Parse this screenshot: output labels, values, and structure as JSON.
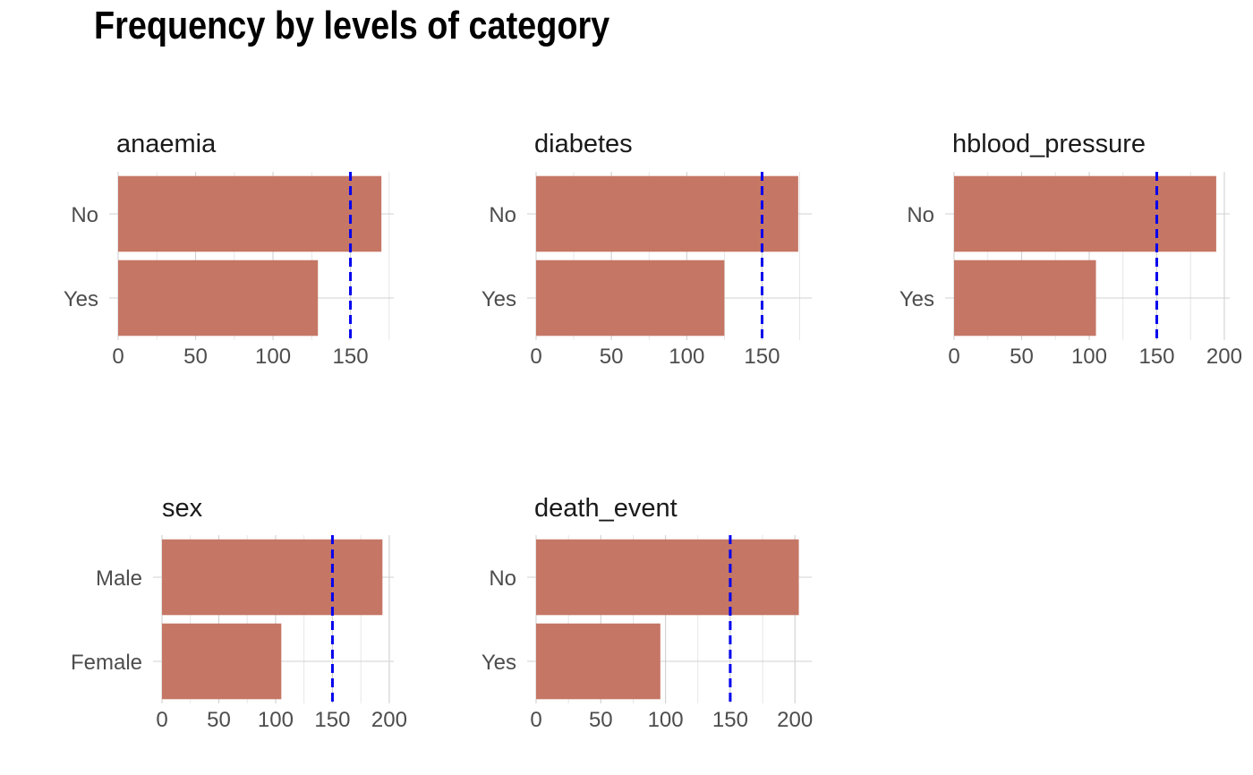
{
  "page": {
    "title": "Frequency by levels of category"
  },
  "colors": {
    "bar": "#c57665",
    "reference_line": "#0000ee"
  },
  "chart_data": [
    {
      "type": "bar",
      "orientation": "horizontal",
      "title": "anaemia",
      "categories": [
        "No",
        "Yes"
      ],
      "values": [
        170,
        129
      ],
      "xlim": [
        0,
        178
      ],
      "xticks": [
        0,
        50,
        100,
        150
      ],
      "reference_line": 150,
      "grid": true,
      "xlabel": "",
      "ylabel": ""
    },
    {
      "type": "bar",
      "orientation": "horizontal",
      "title": "diabetes",
      "categories": [
        "No",
        "Yes"
      ],
      "values": [
        174,
        125
      ],
      "xlim": [
        0,
        183
      ],
      "xticks": [
        0,
        50,
        100,
        150
      ],
      "reference_line": 150,
      "grid": true,
      "xlabel": "",
      "ylabel": ""
    },
    {
      "type": "bar",
      "orientation": "horizontal",
      "title": "hblood_pressure",
      "categories": [
        "No",
        "Yes"
      ],
      "values": [
        194,
        105
      ],
      "xlim": [
        0,
        204
      ],
      "xticks": [
        0,
        50,
        100,
        150,
        200
      ],
      "reference_line": 150,
      "grid": true,
      "xlabel": "",
      "ylabel": ""
    },
    {
      "type": "bar",
      "orientation": "horizontal",
      "title": "sex",
      "categories": [
        "Male",
        "Female"
      ],
      "values": [
        194,
        105
      ],
      "xlim": [
        0,
        204
      ],
      "xticks": [
        0,
        50,
        100,
        150,
        200
      ],
      "reference_line": 150,
      "grid": true,
      "xlabel": "",
      "ylabel": ""
    },
    {
      "type": "bar",
      "orientation": "horizontal",
      "title": "death_event",
      "categories": [
        "No",
        "Yes"
      ],
      "values": [
        203,
        96
      ],
      "xlim": [
        0,
        213
      ],
      "xticks": [
        0,
        50,
        100,
        150,
        200
      ],
      "reference_line": 150,
      "grid": true,
      "xlabel": "",
      "ylabel": ""
    }
  ]
}
